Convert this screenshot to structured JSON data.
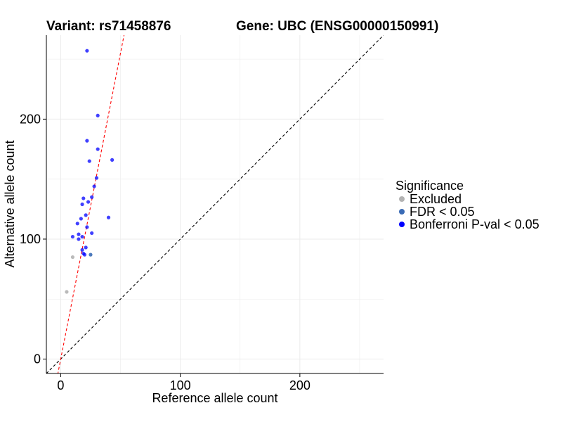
{
  "chart_data": {
    "type": "scatter",
    "title_left": "Variant: rs71458876",
    "title_right": "Gene: UBC (ENSG00000150991)",
    "xlabel": "Reference allele count",
    "ylabel": "Alternative allele count",
    "xlim": [
      -12,
      270
    ],
    "ylim": [
      -12,
      270
    ],
    "xticks": [
      0,
      100,
      200
    ],
    "yticks": [
      0,
      100,
      200
    ],
    "grid": true,
    "legend": {
      "title": "Significance",
      "position": "right",
      "entries": [
        {
          "key": "excluded",
          "label": "Excluded",
          "color": "#b3b3b3"
        },
        {
          "key": "fdr",
          "label": "FDR < 0.05",
          "color": "#3a6bb5"
        },
        {
          "key": "bonferroni",
          "label": "Bonferroni P-val < 0.05",
          "color": "#0000ff"
        }
      ]
    },
    "reference_lines": [
      {
        "kind": "identity",
        "slope": 1,
        "intercept": 0,
        "color": "#000000",
        "dash": true
      },
      {
        "kind": "fit",
        "slope": 5.1,
        "intercept": 0,
        "color": "#ff0000",
        "dash": true
      }
    ],
    "points": [
      {
        "x": 22,
        "y": 257,
        "group": "bonferroni"
      },
      {
        "x": 31,
        "y": 203,
        "group": "bonferroni"
      },
      {
        "x": 22,
        "y": 182,
        "group": "bonferroni"
      },
      {
        "x": 31,
        "y": 175,
        "group": "bonferroni"
      },
      {
        "x": 43,
        "y": 166,
        "group": "bonferroni"
      },
      {
        "x": 24,
        "y": 165,
        "group": "bonferroni"
      },
      {
        "x": 30,
        "y": 151,
        "group": "bonferroni"
      },
      {
        "x": 28,
        "y": 144,
        "group": "bonferroni"
      },
      {
        "x": 26,
        "y": 135,
        "group": "bonferroni"
      },
      {
        "x": 19,
        "y": 134,
        "group": "bonferroni"
      },
      {
        "x": 23,
        "y": 131,
        "group": "bonferroni"
      },
      {
        "x": 18,
        "y": 129,
        "group": "bonferroni"
      },
      {
        "x": 21,
        "y": 120,
        "group": "bonferroni"
      },
      {
        "x": 40,
        "y": 118,
        "group": "bonferroni"
      },
      {
        "x": 17,
        "y": 117,
        "group": "bonferroni"
      },
      {
        "x": 14,
        "y": 113,
        "group": "bonferroni"
      },
      {
        "x": 22,
        "y": 110,
        "group": "bonferroni"
      },
      {
        "x": 26,
        "y": 105,
        "group": "bonferroni"
      },
      {
        "x": 15,
        "y": 104,
        "group": "bonferroni"
      },
      {
        "x": 10,
        "y": 102,
        "group": "bonferroni"
      },
      {
        "x": 18,
        "y": 102,
        "group": "bonferroni"
      },
      {
        "x": 15,
        "y": 100,
        "group": "bonferroni"
      },
      {
        "x": 21,
        "y": 93,
        "group": "bonferroni"
      },
      {
        "x": 18,
        "y": 91,
        "group": "bonferroni"
      },
      {
        "x": 19,
        "y": 88,
        "group": "bonferroni"
      },
      {
        "x": 20,
        "y": 87,
        "group": "bonferroni"
      },
      {
        "x": 25,
        "y": 87,
        "group": "fdr"
      },
      {
        "x": 10,
        "y": 85,
        "group": "excluded"
      },
      {
        "x": 5,
        "y": 56,
        "group": "excluded"
      }
    ]
  }
}
